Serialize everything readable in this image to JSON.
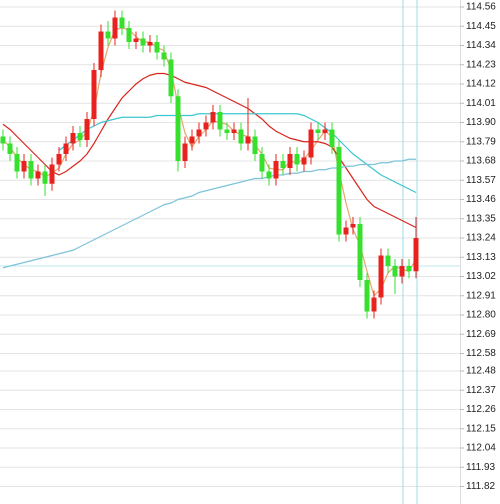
{
  "chart_data": {
    "type": "candlestick",
    "up_color": "#e8231f",
    "down_color": "#36e02c",
    "open": [
      113.82,
      113.78,
      113.72,
      113.62,
      113.68,
      113.58,
      113.62,
      113.55,
      113.66,
      113.72,
      113.78,
      113.84,
      113.8,
      113.92,
      114.2,
      114.42,
      114.38,
      114.5,
      114.44,
      114.36,
      114.38,
      114.34,
      114.36,
      114.3,
      114.26,
      114.05,
      113.68,
      113.78,
      113.82,
      113.86,
      113.9,
      113.96,
      113.86,
      113.84,
      113.86,
      113.78,
      113.82,
      113.72,
      113.62,
      113.58,
      113.68,
      113.64,
      113.72,
      113.66,
      113.7,
      113.86,
      113.84,
      113.86,
      113.76,
      113.26,
      113.3,
      113.32,
      113.0,
      112.82,
      112.9,
      113.14,
      113.08,
      113.02,
      113.08,
      113.05
    ],
    "high": [
      113.86,
      113.82,
      113.76,
      113.72,
      113.72,
      113.66,
      113.66,
      113.7,
      113.76,
      113.82,
      113.88,
      113.88,
      113.96,
      114.24,
      114.46,
      114.48,
      114.54,
      114.54,
      114.48,
      114.42,
      114.42,
      114.4,
      114.4,
      114.34,
      114.3,
      114.09,
      113.82,
      113.86,
      113.9,
      113.94,
      114.0,
      114.0,
      113.9,
      113.9,
      113.9,
      114.04,
      113.86,
      113.76,
      113.66,
      113.72,
      113.72,
      113.76,
      113.76,
      113.74,
      113.9,
      113.9,
      113.9,
      113.9,
      113.8,
      113.34,
      113.36,
      113.36,
      113.04,
      112.94,
      113.18,
      113.18,
      113.12,
      113.12,
      113.12,
      113.36
    ],
    "low": [
      113.74,
      113.68,
      113.58,
      113.58,
      113.54,
      113.54,
      113.48,
      113.51,
      113.62,
      113.68,
      113.74,
      113.76,
      113.76,
      113.88,
      114.16,
      114.34,
      114.34,
      114.4,
      114.32,
      114.32,
      114.3,
      114.3,
      114.26,
      114.22,
      114.01,
      113.62,
      113.64,
      113.74,
      113.78,
      113.82,
      113.86,
      113.82,
      113.8,
      113.8,
      113.74,
      113.74,
      113.68,
      113.58,
      113.54,
      113.54,
      113.6,
      113.6,
      113.62,
      113.62,
      113.66,
      113.8,
      113.8,
      113.72,
      113.22,
      113.22,
      113.26,
      112.96,
      112.78,
      112.78,
      112.86,
      113.04,
      112.92,
      112.98,
      113.01,
      113.01
    ],
    "close": [
      113.78,
      113.72,
      113.62,
      113.68,
      113.58,
      113.62,
      113.55,
      113.66,
      113.72,
      113.78,
      113.84,
      113.8,
      113.92,
      114.2,
      114.42,
      114.38,
      114.5,
      114.44,
      114.36,
      114.38,
      114.34,
      114.36,
      114.3,
      114.26,
      114.05,
      113.68,
      113.78,
      113.82,
      113.86,
      113.9,
      113.96,
      113.86,
      113.84,
      113.86,
      113.78,
      113.82,
      113.72,
      113.62,
      113.58,
      113.68,
      113.64,
      113.72,
      113.66,
      113.7,
      113.86,
      113.84,
      113.86,
      113.76,
      113.26,
      113.3,
      113.32,
      113.0,
      112.82,
      112.9,
      113.14,
      113.08,
      113.02,
      113.08,
      113.05,
      113.24
    ],
    "series": [
      {
        "color": "#e8a56a",
        "values": [
          113.8,
          113.76,
          113.7,
          113.66,
          113.63,
          113.62,
          113.59,
          113.61,
          113.64,
          113.72,
          113.78,
          113.8,
          113.85,
          113.97,
          114.18,
          114.33,
          114.43,
          114.44,
          114.43,
          114.39,
          114.36,
          114.36,
          114.33,
          114.31,
          114.2,
          114.0,
          113.84,
          113.76,
          113.82,
          113.86,
          113.91,
          113.9,
          113.89,
          113.85,
          113.83,
          113.82,
          113.77,
          113.72,
          113.64,
          113.63,
          113.63,
          113.68,
          113.67,
          113.69,
          113.74,
          113.8,
          113.85,
          113.82,
          113.62,
          113.44,
          113.29,
          113.2,
          113.05,
          112.91,
          112.95,
          113.04,
          113.08,
          113.06,
          113.05,
          113.12
        ]
      },
      {
        "color": "#d8261c",
        "values": [
          113.89,
          113.86,
          113.82,
          113.78,
          113.74,
          113.7,
          113.66,
          113.62,
          113.6,
          113.62,
          113.65,
          113.68,
          113.72,
          113.78,
          113.85,
          113.92,
          113.98,
          114.04,
          114.08,
          114.12,
          114.15,
          114.17,
          114.18,
          114.18,
          114.17,
          114.15,
          114.13,
          114.12,
          114.11,
          114.1,
          114.08,
          114.06,
          114.04,
          114.02,
          114.0,
          113.98,
          113.95,
          113.92,
          113.88,
          113.85,
          113.83,
          113.81,
          113.8,
          113.79,
          113.79,
          113.79,
          113.78,
          113.76,
          113.7,
          113.64,
          113.58,
          113.52,
          113.46,
          113.42,
          113.4,
          113.38,
          113.36,
          113.34,
          113.32,
          113.3
        ]
      },
      {
        "color": "#3cc6cf",
        "values": [
          null,
          null,
          null,
          null,
          null,
          null,
          null,
          null,
          113.74,
          113.77,
          113.8,
          113.83,
          113.86,
          113.88,
          113.9,
          113.91,
          113.92,
          113.93,
          113.93,
          113.93,
          113.93,
          113.93,
          113.94,
          113.94,
          113.94,
          113.94,
          113.94,
          113.94,
          113.95,
          113.95,
          113.95,
          113.95,
          113.95,
          113.95,
          113.95,
          113.95,
          113.95,
          113.95,
          113.95,
          113.95,
          113.95,
          113.95,
          113.95,
          113.94,
          113.92,
          113.9,
          113.87,
          113.84,
          113.8,
          113.76,
          113.72,
          113.69,
          113.66,
          113.63,
          113.6,
          113.58,
          113.56,
          113.54,
          113.52,
          113.5
        ]
      },
      {
        "color": "#7cc3d8",
        "values": [
          113.07,
          113.08,
          113.09,
          113.1,
          113.11,
          113.12,
          113.13,
          113.14,
          113.15,
          113.16,
          113.17,
          113.19,
          113.21,
          113.23,
          113.25,
          113.27,
          113.29,
          113.31,
          113.33,
          113.35,
          113.37,
          113.39,
          113.41,
          113.43,
          113.44,
          113.46,
          113.47,
          113.48,
          113.5,
          113.51,
          113.52,
          113.53,
          113.54,
          113.55,
          113.56,
          113.57,
          113.58,
          113.58,
          113.59,
          113.6,
          113.6,
          113.61,
          113.61,
          113.62,
          113.62,
          113.63,
          113.63,
          113.64,
          113.64,
          113.65,
          113.65,
          113.66,
          113.66,
          113.66,
          113.67,
          113.67,
          113.68,
          113.68,
          113.69,
          113.69
        ]
      }
    ],
    "ylim": [
      111.72,
      114.6
    ],
    "yticks": [
      114.56,
      114.45,
      114.34,
      114.23,
      114.12,
      114.01,
      {
        "value": 113.9,
        "label": "113.90"
      },
      113.79,
      113.68,
      113.57,
      113.46,
      113.35,
      113.24,
      113.13,
      113.02,
      112.91,
      {
        "value": 112.8,
        "label": "112.80"
      },
      112.69,
      112.58,
      112.48,
      112.37,
      112.26,
      112.15,
      112.04,
      111.93,
      111.82
    ],
    "grid": true
  }
}
